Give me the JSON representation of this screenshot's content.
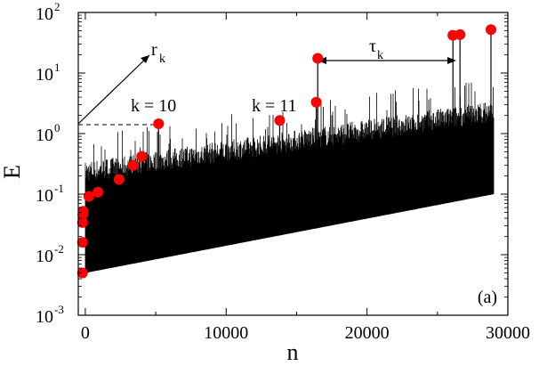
{
  "chart_data": {
    "type": "scatter",
    "xlabel": "n",
    "ylabel": "E",
    "xlim": [
      -500,
      30000
    ],
    "ylim": [
      0.001,
      100
    ],
    "yscale": "log",
    "grid": false,
    "panel_label": "(a)",
    "x_ticks": [
      {
        "value": 0,
        "label": "0"
      },
      {
        "value": 10000,
        "label": "10000"
      },
      {
        "value": 20000,
        "label": "20000"
      },
      {
        "value": 30000,
        "label": "30000"
      }
    ],
    "y_ticks": [
      {
        "value": 0.001,
        "base": "10",
        "exp": "-3"
      },
      {
        "value": 0.01,
        "base": "10",
        "exp": "-2"
      },
      {
        "value": 0.1,
        "base": "10",
        "exp": "-1"
      },
      {
        "value": 1,
        "base": "10",
        "exp": "0"
      },
      {
        "value": 10,
        "base": "10",
        "exp": "1"
      },
      {
        "value": 100,
        "base": "10",
        "exp": "2"
      }
    ],
    "records": {
      "x": [
        -200,
        -200,
        -200,
        -180,
        -150,
        250,
        900,
        2400,
        3400,
        4000,
        5200,
        13800,
        16400,
        16500,
        26100,
        26600,
        28800
      ],
      "y": [
        0.005,
        0.016,
        0.034,
        0.046,
        0.052,
        0.092,
        0.108,
        0.175,
        0.3,
        0.42,
        1.45,
        1.65,
        3.3,
        17.5,
        42,
        43,
        52
      ]
    },
    "envelope": {
      "lower": {
        "x": [
          0,
          29000
        ],
        "y": [
          0.005,
          0.1
        ]
      },
      "upper": {
        "x": [
          0,
          29000
        ],
        "y": [
          0.2,
          2.0
        ]
      }
    },
    "annotations": {
      "k10": "k = 10",
      "k11": "k = 11",
      "r_base": "r",
      "r_sub": "k",
      "tau_base": "τ",
      "tau_sub": "k"
    }
  }
}
